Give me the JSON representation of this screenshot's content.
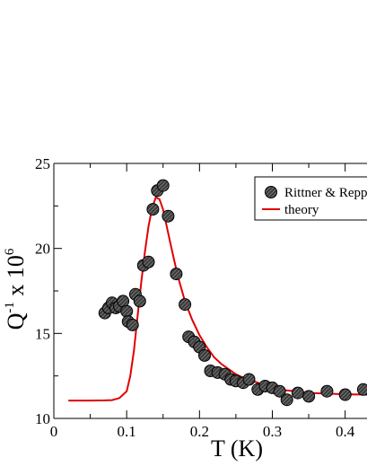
{
  "chart_data": {
    "type": "scatter",
    "title": "",
    "xlabel": "T (K)",
    "ylabel_main": "Q",
    "ylabel_sup": "-1",
    "ylabel_mid": " x 10",
    "ylabel_exp": "6",
    "xlim": [
      0,
      0.43
    ],
    "ylim": [
      10,
      25
    ],
    "x_ticks": [
      0,
      0.1,
      0.2,
      0.3,
      0.4
    ],
    "x_tick_labels": [
      "0",
      "0.1",
      "0.2",
      "0.3",
      "0.4"
    ],
    "y_ticks": [
      10,
      15,
      20,
      25
    ],
    "y_tick_labels": [
      "10",
      "15",
      "20",
      "25"
    ],
    "grid": false,
    "legend_position": "top-right",
    "series": [
      {
        "name": "Rittner & Repp",
        "kind": "points",
        "color": "#000000",
        "points": [
          [
            0.07,
            16.2
          ],
          [
            0.075,
            16.5
          ],
          [
            0.08,
            16.8
          ],
          [
            0.085,
            16.5
          ],
          [
            0.09,
            16.6
          ],
          [
            0.095,
            16.9
          ],
          [
            0.1,
            16.3
          ],
          [
            0.102,
            15.7
          ],
          [
            0.108,
            15.5
          ],
          [
            0.112,
            17.3
          ],
          [
            0.118,
            16.9
          ],
          [
            0.123,
            19.0
          ],
          [
            0.13,
            19.2
          ],
          [
            0.136,
            22.3
          ],
          [
            0.142,
            23.4
          ],
          [
            0.15,
            23.7
          ],
          [
            0.157,
            21.9
          ],
          [
            0.168,
            18.5
          ],
          [
            0.18,
            16.7
          ],
          [
            0.185,
            14.8
          ],
          [
            0.193,
            14.5
          ],
          [
            0.2,
            14.2
          ],
          [
            0.207,
            13.7
          ],
          [
            0.215,
            12.8
          ],
          [
            0.225,
            12.7
          ],
          [
            0.235,
            12.6
          ],
          [
            0.243,
            12.3
          ],
          [
            0.25,
            12.2
          ],
          [
            0.26,
            12.1
          ],
          [
            0.268,
            12.3
          ],
          [
            0.28,
            11.7
          ],
          [
            0.29,
            11.9
          ],
          [
            0.3,
            11.8
          ],
          [
            0.31,
            11.6
          ],
          [
            0.32,
            11.1
          ],
          [
            0.335,
            11.5
          ],
          [
            0.35,
            11.3
          ],
          [
            0.375,
            11.6
          ],
          [
            0.4,
            11.4
          ],
          [
            0.425,
            11.7
          ]
        ]
      },
      {
        "name": "theory",
        "kind": "line",
        "color": "#e00000",
        "points": [
          [
            0.02,
            11.05
          ],
          [
            0.05,
            11.05
          ],
          [
            0.07,
            11.06
          ],
          [
            0.08,
            11.08
          ],
          [
            0.09,
            11.2
          ],
          [
            0.1,
            11.6
          ],
          [
            0.105,
            12.5
          ],
          [
            0.11,
            14.0
          ],
          [
            0.115,
            16.0
          ],
          [
            0.12,
            18.0
          ],
          [
            0.125,
            19.8
          ],
          [
            0.13,
            21.3
          ],
          [
            0.135,
            22.4
          ],
          [
            0.14,
            23.0
          ],
          [
            0.145,
            22.9
          ],
          [
            0.15,
            22.3
          ],
          [
            0.155,
            21.3
          ],
          [
            0.16,
            20.3
          ],
          [
            0.17,
            18.4
          ],
          [
            0.18,
            16.9
          ],
          [
            0.19,
            15.8
          ],
          [
            0.2,
            14.9
          ],
          [
            0.21,
            14.2
          ],
          [
            0.22,
            13.6
          ],
          [
            0.23,
            13.2
          ],
          [
            0.24,
            12.9
          ],
          [
            0.25,
            12.6
          ],
          [
            0.26,
            12.4
          ],
          [
            0.28,
            12.1
          ],
          [
            0.3,
            11.8
          ],
          [
            0.32,
            11.65
          ],
          [
            0.35,
            11.5
          ],
          [
            0.38,
            11.45
          ],
          [
            0.4,
            11.42
          ],
          [
            0.43,
            11.4
          ]
        ]
      }
    ]
  }
}
